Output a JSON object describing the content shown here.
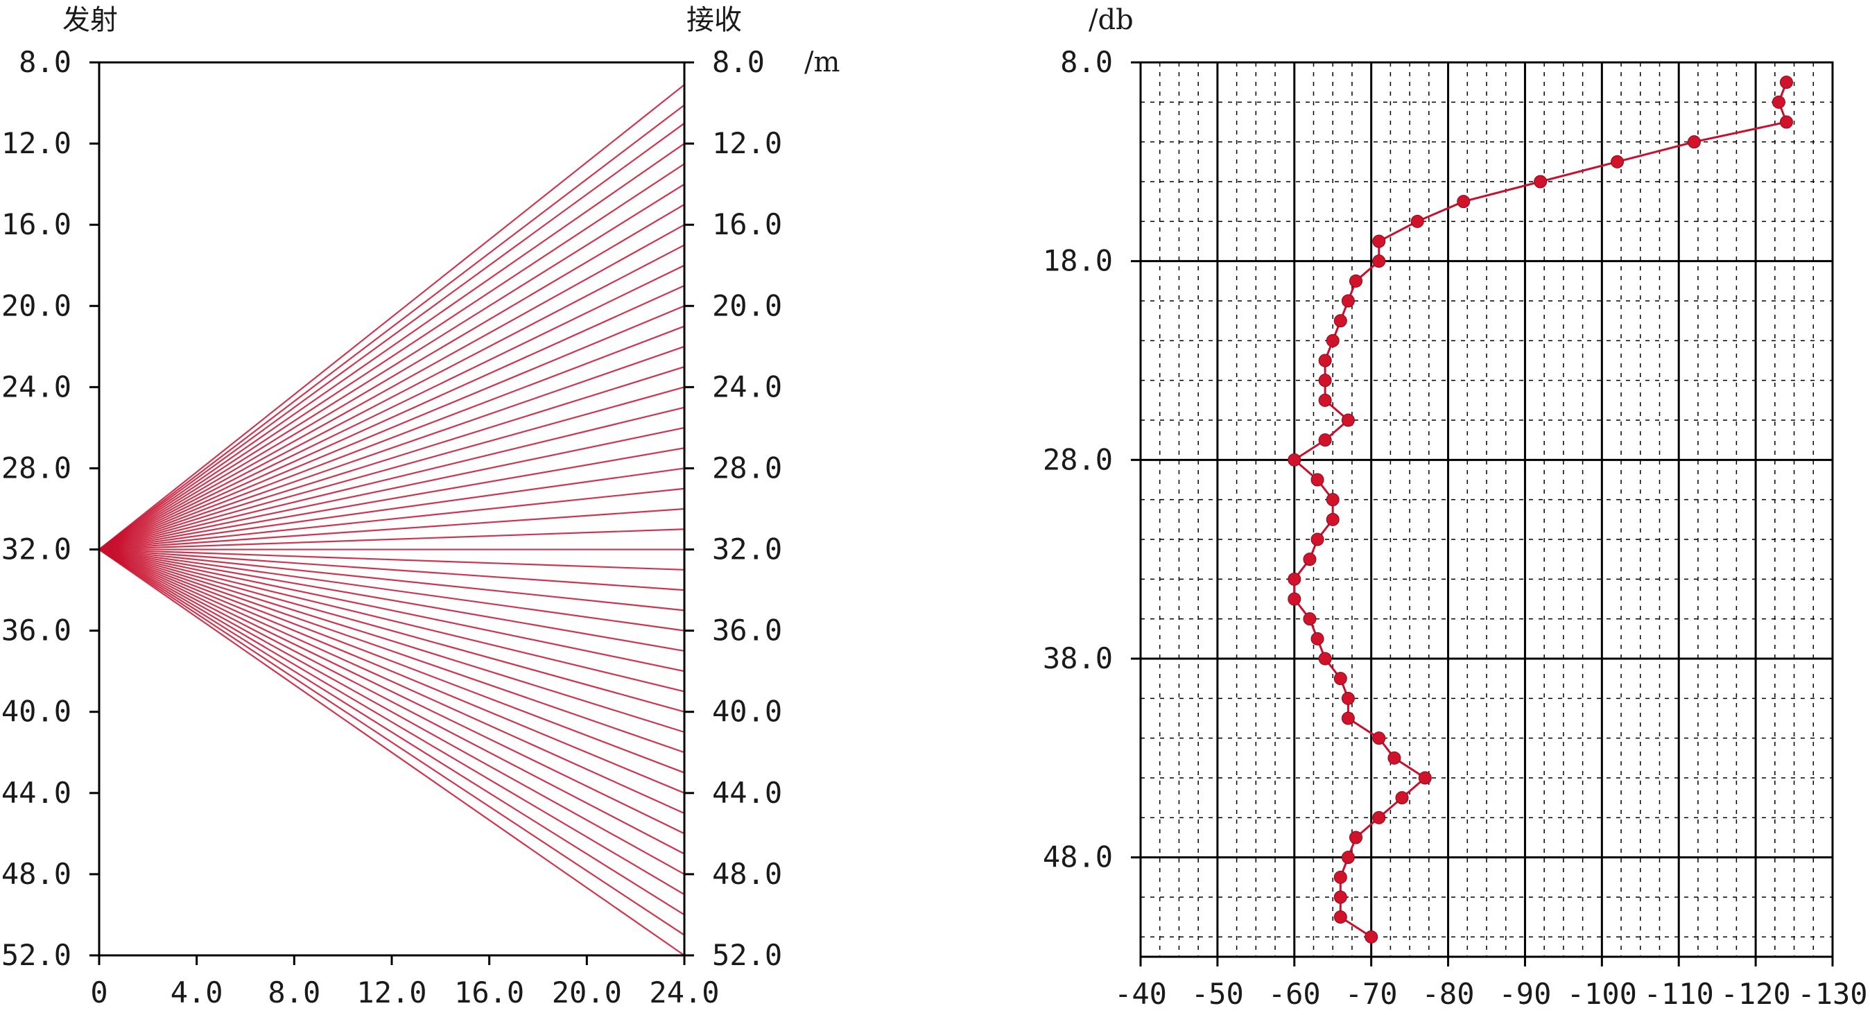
{
  "chart_data": [
    {
      "type": "line",
      "left_title": "发射",
      "right_title": "接收",
      "unit_label": "/m",
      "depth_ticks": [
        "8.0",
        "12.0",
        "16.0",
        "20.0",
        "24.0",
        "28.0",
        "32.0",
        "36.0",
        "40.0",
        "44.0",
        "48.0",
        "52.0"
      ],
      "x_ticks": [
        "0",
        "4.0",
        "8.0",
        "12.0",
        "16.0",
        "20.0",
        "24.0"
      ],
      "xlim": [
        0,
        24
      ],
      "ylim": [
        8,
        52
      ],
      "source_depth": 32,
      "receiver_depths": [
        9.1,
        10.1,
        11.0,
        12.0,
        13.0,
        14.0,
        15.0,
        16.0,
        17.0,
        18.0,
        19.0,
        20.0,
        21.0,
        22.0,
        23.0,
        24.0,
        25.0,
        26.0,
        27.0,
        28.0,
        29.0,
        30.0,
        31.0,
        32.0,
        33.0,
        34.0,
        35.0,
        36.0,
        37.0,
        38.0,
        39.0,
        40.0,
        41.0,
        42.0,
        43.0,
        44.0,
        45.0,
        46.0,
        47.0,
        48.0,
        49.0,
        50.0,
        51.0,
        52.0
      ],
      "ray_color": "#c8102e"
    },
    {
      "type": "line",
      "unit_label": "/db",
      "depth_ticks": [
        "8.0",
        "18.0",
        "28.0",
        "38.0",
        "48.0"
      ],
      "x_ticks": [
        "-40",
        "-50",
        "-60",
        "-70",
        "-80",
        "-90",
        "-100",
        "-110",
        "-120",
        "-130"
      ],
      "xlim": [
        -40,
        -130
      ],
      "ylim": [
        8,
        53
      ],
      "x": [
        -124,
        -123,
        -124,
        -112,
        -102,
        -92,
        -82,
        -76,
        -71,
        -71,
        -68,
        -67,
        -66,
        -65,
        -64,
        -64,
        -64,
        -67,
        -64,
        -60,
        -63,
        -65,
        -65,
        -63,
        -62,
        -60,
        -60,
        -62,
        -63,
        -64,
        -66,
        -67,
        -67,
        -71,
        -73,
        -77,
        -74,
        -71,
        -68,
        -67,
        -66,
        -66,
        -66,
        -70
      ],
      "y": [
        9.0,
        10.0,
        11.0,
        12.0,
        13.0,
        14.0,
        15.0,
        16.0,
        17.0,
        18.0,
        19.0,
        20.0,
        21.0,
        22.0,
        23.0,
        24.0,
        25.0,
        26.0,
        27.0,
        28.0,
        29.0,
        30.0,
        31.0,
        32.0,
        33.0,
        34.0,
        35.0,
        36.0,
        37.0,
        38.0,
        39.0,
        40.0,
        41.0,
        42.0,
        43.0,
        44.0,
        45.0,
        46.0,
        47.0,
        48.0,
        49.0,
        50.0,
        51.0,
        52.0
      ],
      "line_color": "#c8102e"
    }
  ]
}
